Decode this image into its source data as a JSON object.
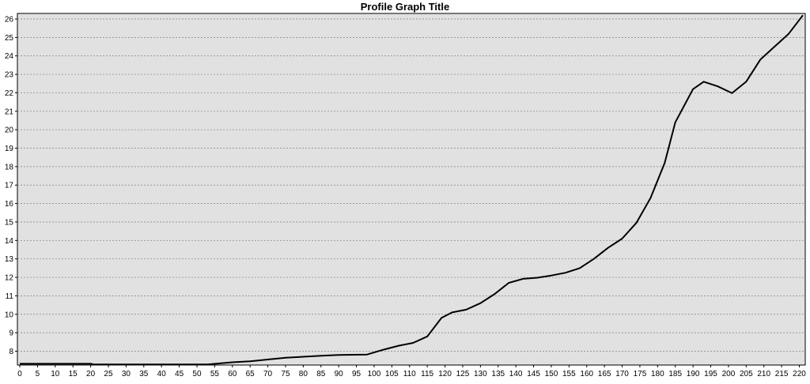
{
  "chart_data": {
    "type": "line",
    "title": "Profile Graph Title",
    "xlabel": "",
    "ylabel": "",
    "xlim": [
      0,
      221
    ],
    "ylim": [
      7.25,
      26.3
    ],
    "x_ticks": [
      0,
      5,
      10,
      15,
      20,
      25,
      30,
      35,
      40,
      45,
      50,
      55,
      60,
      65,
      70,
      75,
      80,
      85,
      90,
      95,
      100,
      105,
      110,
      115,
      120,
      125,
      130,
      135,
      140,
      145,
      150,
      155,
      160,
      165,
      170,
      175,
      180,
      185,
      190,
      195,
      200,
      205,
      210,
      215,
      220
    ],
    "y_ticks": [
      8,
      9,
      10,
      11,
      12,
      13,
      14,
      15,
      16,
      17,
      18,
      19,
      20,
      21,
      22,
      23,
      24,
      25,
      26
    ],
    "grid": "horizontal dotted",
    "colors": {
      "plot_bg": "#e1e1e1",
      "line": "#000000",
      "grid": "#808080"
    },
    "series": [
      {
        "points": [
          [
            0,
            7.32
          ],
          [
            20,
            7.32
          ],
          [
            21,
            7.28
          ],
          [
            53,
            7.28
          ],
          [
            60,
            7.4
          ],
          [
            65,
            7.45
          ],
          [
            70,
            7.55
          ],
          [
            75,
            7.65
          ],
          [
            80,
            7.7
          ],
          [
            85,
            7.75
          ],
          [
            90,
            7.8
          ],
          [
            98,
            7.82
          ],
          [
            103,
            8.1
          ],
          [
            107,
            8.3
          ],
          [
            111,
            8.45
          ],
          [
            115,
            8.8
          ],
          [
            119,
            9.8
          ],
          [
            122,
            10.1
          ],
          [
            126,
            10.25
          ],
          [
            130,
            10.6
          ],
          [
            134,
            11.1
          ],
          [
            138,
            11.7
          ],
          [
            142,
            11.92
          ],
          [
            146,
            11.98
          ],
          [
            150,
            12.1
          ],
          [
            154,
            12.25
          ],
          [
            158,
            12.5
          ],
          [
            162,
            13.0
          ],
          [
            166,
            13.6
          ],
          [
            170,
            14.1
          ],
          [
            174,
            14.95
          ],
          [
            178,
            16.3
          ],
          [
            182,
            18.2
          ],
          [
            185,
            20.4
          ],
          [
            190,
            22.2
          ],
          [
            193,
            22.6
          ],
          [
            197,
            22.35
          ],
          [
            201,
            21.98
          ],
          [
            205,
            22.6
          ],
          [
            209,
            23.8
          ],
          [
            213,
            24.5
          ],
          [
            217,
            25.2
          ],
          [
            221,
            26.2
          ]
        ]
      }
    ]
  }
}
